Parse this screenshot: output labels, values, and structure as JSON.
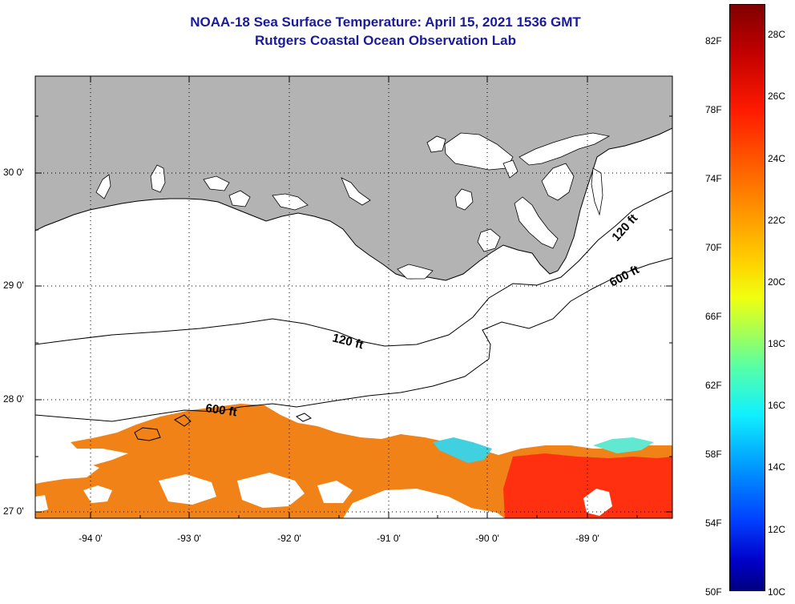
{
  "title": {
    "line1": "NOAA-18 Sea Surface Temperature:  April 15, 2021 1536 GMT",
    "line2": "Rutgers Coastal Ocean Observation Lab"
  },
  "map": {
    "latitude_labels": [
      "30 0'",
      "29 0'",
      "28 0'",
      "27 0'"
    ],
    "longitude_labels": [
      "-94 0'",
      "-93 0'",
      "-92 0'",
      "-91 0'",
      "-90 0'",
      "-89 0'"
    ],
    "contour_labels": {
      "c120_west": "120 ft",
      "c120_east": "120 ft",
      "c600_west": "600 ft",
      "c600_east": "600 ft"
    },
    "colors": {
      "land": "#b3b3b3",
      "no_data": "#ffffff",
      "sst_warm": "#f08218",
      "sst_hot": "#ff3010",
      "sst_cool": "#40d0e0",
      "grid": "#000000"
    }
  },
  "colorbar": {
    "fahrenheit": [
      "82F",
      "78F",
      "74F",
      "70F",
      "66F",
      "62F",
      "58F",
      "54F",
      "50F"
    ],
    "celsius": [
      "28C",
      "26C",
      "24C",
      "22C",
      "20C",
      "18C",
      "16C",
      "14C",
      "12C",
      "10C"
    ],
    "range_c": [
      10,
      29
    ],
    "range_f": [
      50,
      84.2
    ]
  }
}
